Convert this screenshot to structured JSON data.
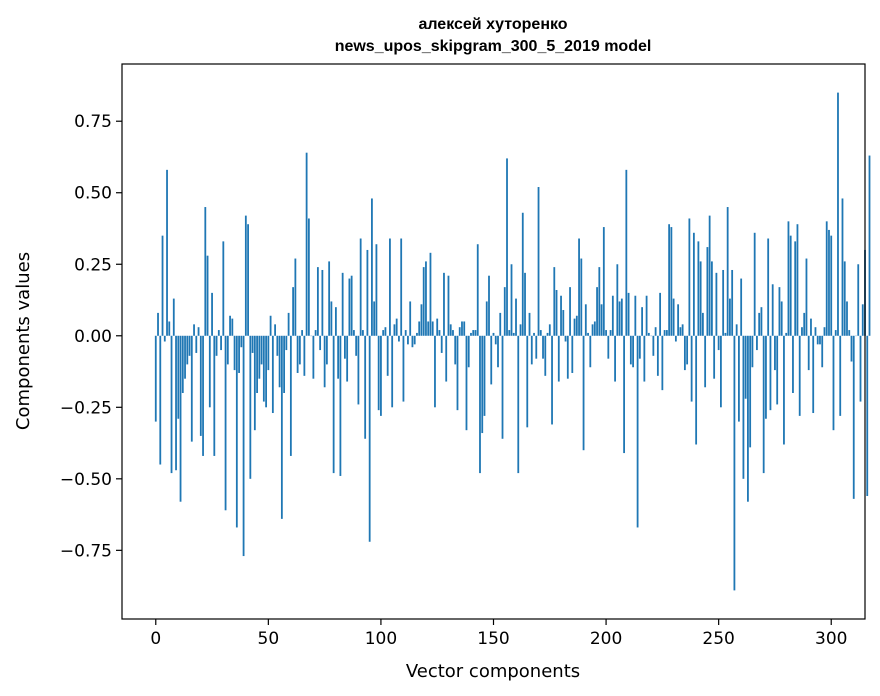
{
  "chart_data": {
    "type": "bar",
    "title_line1": "алексей хуторенко",
    "title_line2": "news_upos_skipgram_300_5_2019 model",
    "xlabel": "Vector components",
    "ylabel": "Components values",
    "xlim": [
      -15,
      315
    ],
    "ylim": [
      -0.99,
      0.95
    ],
    "xticks": [
      0,
      50,
      100,
      150,
      200,
      250,
      300
    ],
    "yticks": [
      -0.75,
      -0.5,
      -0.25,
      0.0,
      0.25,
      0.5,
      0.75
    ],
    "ytick_labels": [
      "−0.75",
      "−0.50",
      "−0.25",
      "0.00",
      "0.25",
      "0.50",
      "0.75"
    ],
    "grid": false,
    "bar_color": "#1f77b4",
    "values": [
      -0.3,
      0.08,
      -0.45,
      0.35,
      -0.02,
      0.58,
      0.05,
      -0.48,
      0.13,
      -0.47,
      -0.29,
      -0.58,
      -0.2,
      -0.15,
      -0.1,
      -0.07,
      -0.37,
      0.04,
      -0.06,
      0.03,
      -0.35,
      -0.42,
      0.45,
      0.28,
      -0.25,
      0.15,
      -0.42,
      -0.07,
      0.02,
      -0.05,
      0.33,
      -0.61,
      -0.1,
      0.07,
      0.06,
      -0.12,
      -0.67,
      -0.13,
      -0.04,
      -0.77,
      0.42,
      0.39,
      -0.5,
      -0.06,
      -0.33,
      -0.2,
      -0.15,
      -0.1,
      -0.23,
      -0.25,
      -0.12,
      0.07,
      -0.27,
      0.04,
      -0.07,
      -0.18,
      -0.64,
      -0.2,
      -0.05,
      0.08,
      -0.42,
      0.17,
      0.27,
      -0.13,
      -0.1,
      0.02,
      -0.14,
      0.64,
      0.41,
      0.0,
      -0.15,
      0.02,
      0.24,
      -0.05,
      0.23,
      -0.18,
      -0.1,
      0.26,
      0.12,
      -0.48,
      0.1,
      -0.15,
      -0.49,
      0.22,
      -0.08,
      -0.16,
      0.2,
      0.21,
      0.02,
      -0.07,
      -0.24,
      0.34,
      0.02,
      -0.36,
      0.3,
      -0.72,
      0.48,
      0.12,
      0.32,
      -0.26,
      -0.28,
      0.02,
      0.03,
      -0.14,
      0.34,
      -0.25,
      0.04,
      0.06,
      -0.02,
      0.34,
      -0.23,
      0.02,
      -0.03,
      0.12,
      -0.04,
      -0.03,
      0.01,
      0.05,
      0.11,
      0.24,
      0.26,
      0.05,
      0.29,
      0.05,
      -0.25,
      0.06,
      0.02,
      -0.06,
      0.22,
      -0.16,
      0.21,
      0.04,
      0.02,
      -0.1,
      -0.26,
      0.03,
      0.05,
      0.05,
      -0.33,
      -0.11,
      0.01,
      0.02,
      0.02,
      0.32,
      -0.48,
      -0.34,
      -0.28,
      0.12,
      0.21,
      -0.17,
      0.01,
      -0.03,
      -0.11,
      0.08,
      -0.36,
      0.17,
      0.62,
      0.02,
      0.25,
      0.01,
      0.13,
      -0.48,
      0.04,
      0.43,
      0.22,
      -0.32,
      0.08,
      -0.1,
      0.01,
      -0.08,
      0.52,
      0.02,
      -0.08,
      -0.14,
      0.01,
      0.04,
      -0.31,
      0.24,
      0.16,
      -0.16,
      0.14,
      0.09,
      -0.02,
      -0.15,
      0.17,
      -0.13,
      0.06,
      0.07,
      0.34,
      0.27,
      -0.4,
      0.11,
      0.01,
      -0.11,
      0.04,
      0.05,
      0.17,
      0.24,
      0.11,
      0.38,
      0.02,
      -0.08,
      0.02,
      0.14,
      -0.16,
      0.25,
      0.12,
      0.13,
      -0.41,
      0.58,
      0.15,
      -0.1,
      -0.11,
      0.14,
      -0.67,
      -0.08,
      0.1,
      -0.16,
      0.14,
      0.01,
      0.0,
      -0.07,
      0.03,
      -0.14,
      0.15,
      -0.19,
      0.02,
      0.02,
      0.39,
      0.38,
      0.13,
      -0.02,
      0.11,
      0.03,
      0.04,
      -0.12,
      -0.1,
      0.41,
      -0.23,
      0.36,
      -0.38,
      0.33,
      0.26,
      0.08,
      -0.18,
      0.31,
      0.42,
      0.26,
      -0.15,
      0.22,
      -0.05,
      -0.25,
      0.23,
      0.01,
      0.45,
      0.13,
      0.23,
      -0.89,
      0.04,
      -0.3,
      0.2,
      -0.5,
      -0.22,
      -0.58,
      -0.39,
      -0.11,
      0.36,
      -0.05,
      0.08,
      0.1,
      -0.48,
      -0.29,
      0.34,
      -0.26,
      0.18,
      -0.12,
      -0.24,
      0.17,
      0.12,
      -0.38,
      0.01,
      0.4,
      0.35,
      -0.2,
      0.33,
      0.39,
      -0.28,
      0.03,
      0.08,
      0.27,
      -0.12,
      0.06,
      -0.27,
      0.03,
      -0.03,
      -0.03,
      -0.11,
      0.03,
      0.4,
      0.37,
      0.35,
      -0.33,
      0.02,
      0.85,
      -0.28,
      0.48,
      0.26,
      0.12,
      0.02,
      -0.09,
      -0.57,
      0.0,
      0.25,
      -0.23,
      0.11,
      0.3,
      -0.56,
      0.63
    ]
  }
}
